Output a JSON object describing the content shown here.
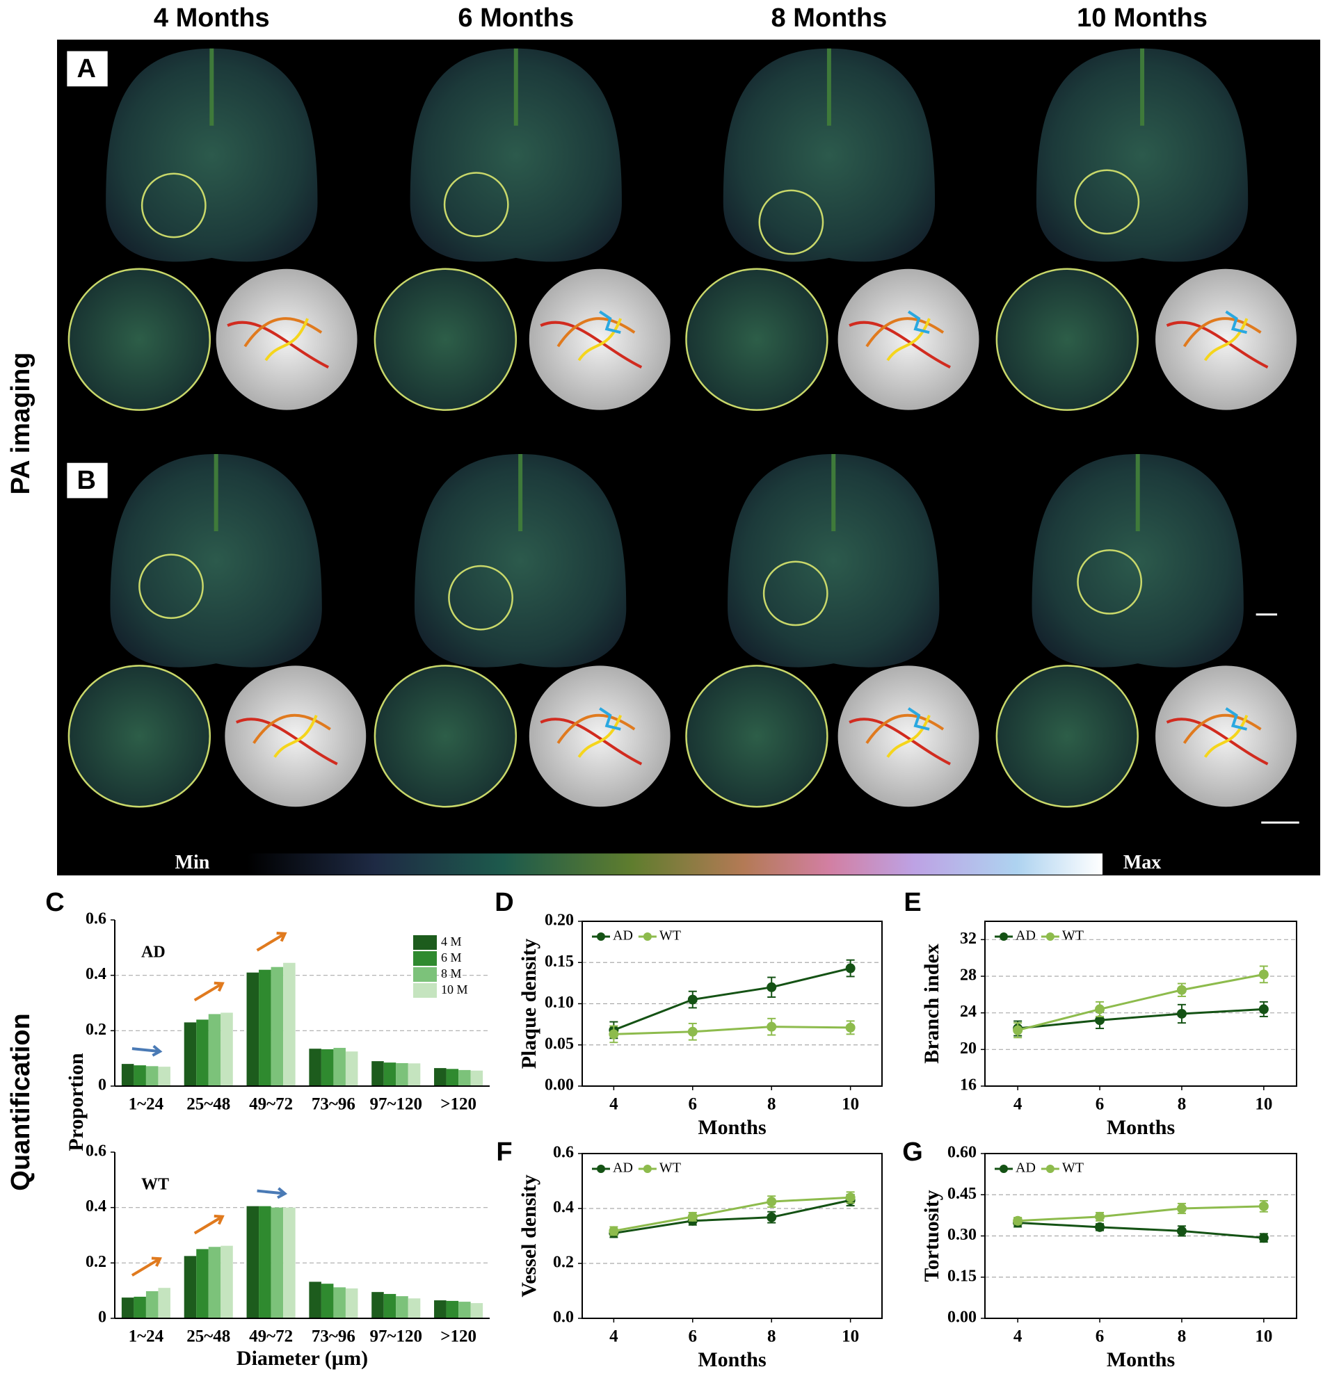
{
  "figure": {
    "columns": [
      "4 Months",
      "6 Months",
      "8 Months",
      "10 Months"
    ],
    "row_titles": [
      "PA imaging",
      "Quantification"
    ],
    "panel_labels": [
      "A",
      "B",
      "C",
      "D",
      "E",
      "F",
      "G"
    ],
    "colorbar": {
      "min_label": "Min",
      "max_label": "Max"
    },
    "proportion_label": "Proportion"
  },
  "chart_data": [
    {
      "type": "bar",
      "annotation": "AD",
      "categories": [
        "1~24",
        "25~48",
        "49~72",
        "73~96",
        "97~120",
        ">120"
      ],
      "series": [
        {
          "name": "4 M",
          "color": "#1d5c1d",
          "values": [
            0.08,
            0.23,
            0.41,
            0.135,
            0.09,
            0.065
          ]
        },
        {
          "name": "6 M",
          "color": "#2f8a2f",
          "values": [
            0.075,
            0.24,
            0.42,
            0.133,
            0.085,
            0.062
          ]
        },
        {
          "name": "8 M",
          "color": "#7cc27a",
          "values": [
            0.072,
            0.26,
            0.43,
            0.138,
            0.083,
            0.058
          ]
        },
        {
          "name": "10 M",
          "color": "#c5e4bf",
          "values": [
            0.07,
            0.265,
            0.445,
            0.125,
            0.082,
            0.056
          ]
        }
      ],
      "ylim": [
        0,
        0.6
      ],
      "yticks": [
        0,
        0.2,
        0.4,
        0.6
      ],
      "grid": true,
      "legend": "upper right"
    },
    {
      "type": "bar",
      "annotation": "WT",
      "xlabel": "Diameter (µm)",
      "categories": [
        "1~24",
        "25~48",
        "49~72",
        "73~96",
        "97~120",
        ">120"
      ],
      "series": [
        {
          "name": "4 M",
          "color": "#1d5c1d",
          "values": [
            0.075,
            0.225,
            0.405,
            0.132,
            0.095,
            0.065
          ]
        },
        {
          "name": "6 M",
          "color": "#2f8a2f",
          "values": [
            0.078,
            0.25,
            0.405,
            0.125,
            0.088,
            0.063
          ]
        },
        {
          "name": "8 M",
          "color": "#7cc27a",
          "values": [
            0.098,
            0.258,
            0.4,
            0.112,
            0.08,
            0.06
          ]
        },
        {
          "name": "10 M",
          "color": "#c5e4bf",
          "values": [
            0.11,
            0.262,
            0.4,
            0.108,
            0.072,
            0.055
          ]
        }
      ],
      "ylim": [
        0,
        0.6
      ],
      "yticks": [
        0,
        0.2,
        0.4,
        0.6
      ],
      "grid": true
    },
    {
      "type": "line",
      "ylabel": "Plaque density",
      "xlabel": "Months",
      "x": [
        4,
        6,
        8,
        10
      ],
      "xlim": [
        3.2,
        10.8
      ],
      "xticks": [
        4,
        6,
        8,
        10
      ],
      "ylim": [
        0,
        0.2
      ],
      "yticks": [
        {
          "value": 0,
          "label": "0.00"
        },
        {
          "value": 0.05,
          "label": "0.05"
        },
        {
          "value": 0.1,
          "label": "0.10"
        },
        {
          "value": 0.15,
          "label": "0.15"
        },
        {
          "value": 0.2,
          "label": "0.20"
        }
      ],
      "grid": true,
      "legend": "upper left",
      "series": [
        {
          "name": "AD",
          "color": "#145214",
          "values": [
            0.068,
            0.105,
            0.12,
            0.143
          ],
          "errors": [
            0.01,
            0.01,
            0.012,
            0.01
          ]
        },
        {
          "name": "WT",
          "color": "#8dbb4c",
          "values": [
            0.063,
            0.066,
            0.072,
            0.071
          ],
          "errors": [
            0.01,
            0.01,
            0.01,
            0.008
          ]
        }
      ]
    },
    {
      "type": "line",
      "ylabel": "Branch index",
      "xlabel": "Months",
      "x": [
        4,
        6,
        8,
        10
      ],
      "xlim": [
        3.2,
        10.8
      ],
      "xticks": [
        4,
        6,
        8,
        10
      ],
      "ylim": [
        16,
        34
      ],
      "yticks": [
        16,
        20,
        24,
        28,
        32
      ],
      "grid": true,
      "legend": "upper left",
      "series": [
        {
          "name": "AD",
          "color": "#145214",
          "values": [
            22.3,
            23.2,
            23.9,
            24.4
          ],
          "errors": [
            0.8,
            0.9,
            1.0,
            0.8
          ]
        },
        {
          "name": "WT",
          "color": "#8dbb4c",
          "values": [
            22.1,
            24.4,
            26.5,
            28.2
          ],
          "errors": [
            0.8,
            0.8,
            0.7,
            0.9
          ]
        }
      ]
    },
    {
      "type": "line",
      "ylabel": "Vessel density",
      "xlabel": "Months",
      "x": [
        4,
        6,
        8,
        10
      ],
      "xlim": [
        3.2,
        10.8
      ],
      "xticks": [
        4,
        6,
        8,
        10
      ],
      "ylim": [
        0,
        0.6
      ],
      "yticks": [
        {
          "value": 0,
          "label": "0.0"
        },
        0.2,
        0.4,
        0.6
      ],
      "grid": true,
      "legend": "upper left",
      "series": [
        {
          "name": "AD",
          "color": "#145214",
          "values": [
            0.31,
            0.355,
            0.368,
            0.43
          ],
          "errors": [
            0.015,
            0.015,
            0.02,
            0.02
          ]
        },
        {
          "name": "WT",
          "color": "#8dbb4c",
          "values": [
            0.318,
            0.37,
            0.425,
            0.44
          ],
          "errors": [
            0.015,
            0.015,
            0.02,
            0.02
          ]
        }
      ]
    },
    {
      "type": "line",
      "ylabel": "Tortuosity",
      "xlabel": "Months",
      "x": [
        4,
        6,
        8,
        10
      ],
      "xlim": [
        3.2,
        10.8
      ],
      "xticks": [
        4,
        6,
        8,
        10
      ],
      "ylim": [
        0,
        0.6
      ],
      "yticks": [
        {
          "value": 0,
          "label": "0.00"
        },
        {
          "value": 0.15,
          "label": "0.15"
        },
        {
          "value": 0.3,
          "label": "0.30"
        },
        {
          "value": 0.45,
          "label": "0.45"
        },
        {
          "value": 0.6,
          "label": "0.60"
        }
      ],
      "grid": true,
      "legend": "upper left",
      "series": [
        {
          "name": "AD",
          "color": "#145214",
          "values": [
            0.348,
            0.332,
            0.318,
            0.293
          ],
          "errors": [
            0.015,
            0.012,
            0.018,
            0.015
          ]
        },
        {
          "name": "WT",
          "color": "#8dbb4c",
          "values": [
            0.355,
            0.37,
            0.4,
            0.408
          ],
          "errors": [
            0.012,
            0.015,
            0.018,
            0.02
          ]
        }
      ]
    }
  ]
}
